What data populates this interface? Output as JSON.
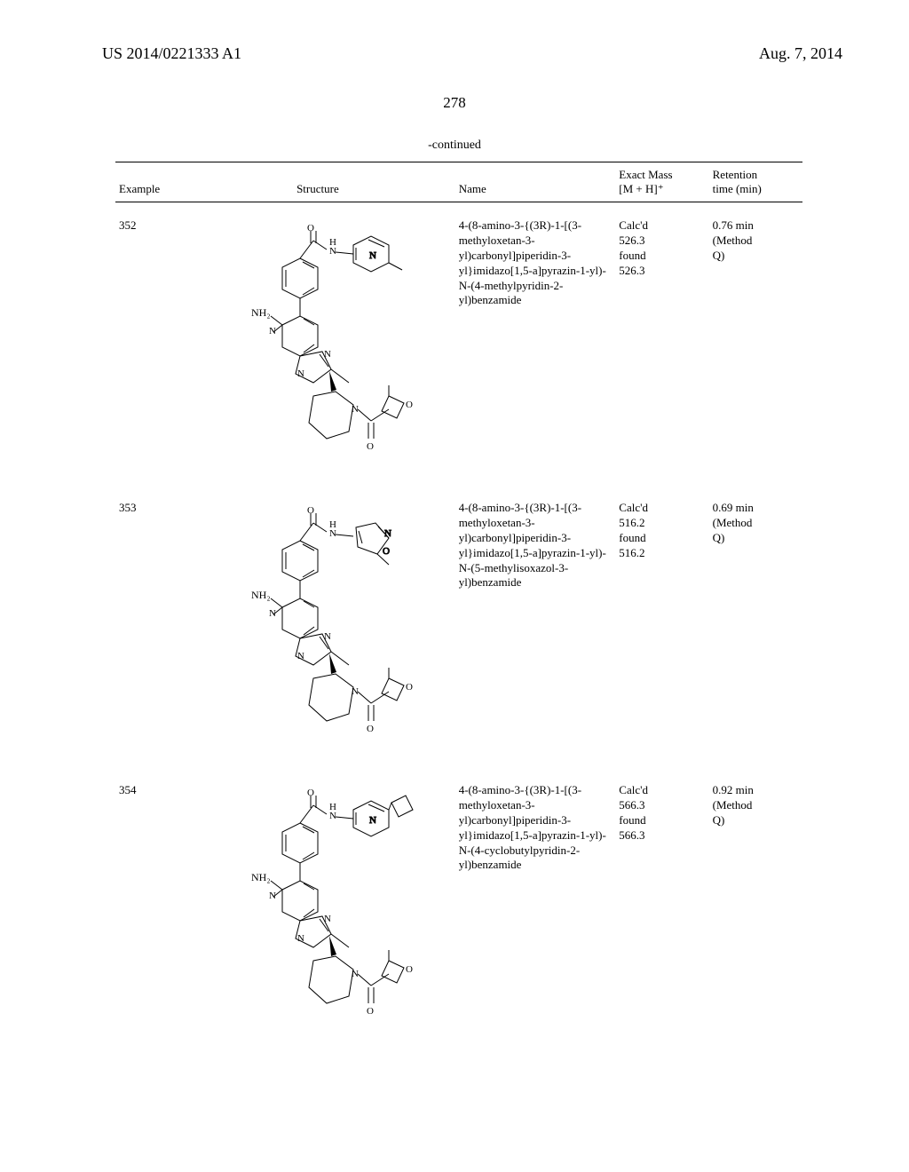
{
  "header": {
    "pub_number": "US 2014/0221333 A1",
    "pub_date": "Aug. 7, 2014"
  },
  "page_number": "278",
  "continued_label": "-continued",
  "columns": {
    "example": "Example",
    "structure": "Structure",
    "name": "Name",
    "mass_line1": "Exact Mass",
    "mass_line2": "[M + H]⁺",
    "rt_line1": "Retention",
    "rt_line2": "time (min)"
  },
  "rows": [
    {
      "example": "352",
      "name": "4-(8-amino-3-{(3R)-1-[(3-methyloxetan-3-yl)carbonyl]piperidin-3-yl}imidazo[1,5-a]pyrazin-1-yl)-N-(4-methylpyridin-2-yl)benzamide",
      "mass": "Calc'd 526.3, found 526.3",
      "rt": "0.76 min (Method Q)",
      "structure_height": 300,
      "top_ring": "pyridyl-methyl"
    },
    {
      "example": "353",
      "name": "4-(8-amino-3-{(3R)-1-[(3-methyloxetan-3-yl)carbonyl]piperidin-3-yl}imidazo[1,5-a]pyrazin-1-yl)-N-(5-methylisoxazol-3-yl)benzamide",
      "mass": "Calc'd 516.2, found 516.2",
      "rt": "0.69 min (Method Q)",
      "structure_height": 300,
      "top_ring": "isoxazolyl-methyl"
    },
    {
      "example": "354",
      "name": "4-(8-amino-3-{(3R)-1-[(3-methyloxetan-3-yl)carbonyl]piperidin-3-yl}imidazo[1,5-a]pyrazin-1-yl)-N-(4-cyclobutylpyridin-2-yl)benzamide",
      "mass": "Calc'd 566.3, found 566.3",
      "rt": "0.92 min (Method Q)",
      "structure_height": 300,
      "top_ring": "pyridyl-cyclobutyl"
    }
  ]
}
